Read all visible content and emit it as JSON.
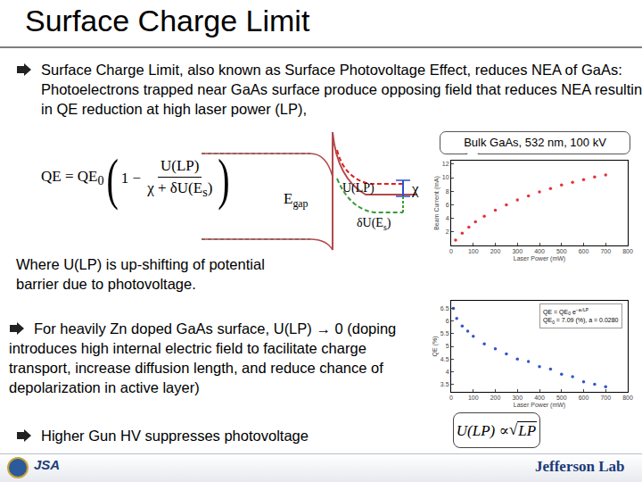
{
  "header": {
    "title": "Surface Charge Limit"
  },
  "bullets": [
    "Surface Charge Limit, also known as Surface Photovoltage Effect, reduces NEA of GaAs: Photoelectrons trapped near GaAs surface produce opposing field that reduces NEA resulting in QE reduction at high laser power (LP),",
    "For heavily Zn doped GaAs surface, U(LP) → 0 (doping introduces high internal electric field to facilitate charge transport, increase diffusion length, and reduce chance of depolarization in active layer)",
    "Higher Gun HV suppresses photovoltage"
  ],
  "note": "Where U(LP) is up-shifting of potential barrier due to photovoltage.",
  "formula": {
    "lhs": "QE = QE",
    "lhs_sub": "0",
    "open": "(",
    "one_minus": "1 −",
    "numerator": "U(LP)",
    "denominator": "χ + δU(E",
    "denominator_sub": "s",
    "denominator_end": ")",
    "close": ")"
  },
  "diagram": {
    "egap": {
      "text": "E",
      "sub": "gap"
    },
    "u_lp": "U(LP)",
    "chi": "χ",
    "delta_u": {
      "text": "δU(E",
      "sub": "s",
      "end": ")"
    }
  },
  "callout": "Bulk GaAs, 532 nm, 100 kV",
  "proportional": {
    "lhs": "U(LP) ∝ ",
    "radical": "√",
    "radicand": "LP"
  },
  "chart_data": [
    {
      "type": "scatter",
      "x_label": "Laser Power (mW)",
      "y_label": "Beam Current (mA)",
      "x": [
        20,
        50,
        80,
        110,
        150,
        200,
        250,
        300,
        350,
        400,
        450,
        500,
        550,
        600,
        650,
        700
      ],
      "series": [
        {
          "color": "#e8303a",
          "marker": "circle",
          "values": [
            0.8,
            1.8,
            2.7,
            3.5,
            4.3,
            5.2,
            6.0,
            6.7,
            7.3,
            7.9,
            8.4,
            8.9,
            9.3,
            9.7,
            10.1,
            10.4
          ]
        }
      ],
      "xlim": [
        0,
        800
      ],
      "xticks": [
        0,
        100,
        200,
        300,
        400,
        500,
        600,
        700,
        800
      ],
      "ylim": [
        0,
        12.5
      ],
      "yticks": [
        2,
        4,
        6,
        8,
        10,
        12
      ],
      "grid": false
    },
    {
      "type": "scatter",
      "x_label": "Laser Power (mW)",
      "y_label": "QE (%)",
      "x": [
        10,
        25,
        50,
        75,
        100,
        150,
        200,
        250,
        300,
        350,
        400,
        450,
        500,
        550,
        600,
        650,
        700
      ],
      "series": [
        {
          "color": "#2f55c8",
          "marker": "circle",
          "values": [
            6.5,
            6.1,
            5.8,
            5.6,
            5.4,
            5.1,
            4.9,
            4.7,
            4.5,
            4.4,
            4.2,
            4.1,
            3.9,
            3.8,
            3.6,
            3.5,
            3.4
          ]
        }
      ],
      "xlim": [
        0,
        800
      ],
      "xticks": [
        0,
        100,
        200,
        300,
        400,
        500,
        600,
        700,
        800
      ],
      "ylim": [
        3.2,
        6.8
      ],
      "yticks": [
        3.5,
        4,
        4.5,
        5,
        5.5,
        6,
        6.5
      ],
      "grid": false,
      "annotations": [
        {
          "text": "QE = QE",
          "sub": "0",
          "tail": " e",
          "sup": "−a√LP"
        },
        {
          "text": "QE",
          "sub": "0",
          "tail": " = 7.09 (%), a = 0.0280"
        }
      ]
    }
  ],
  "footer": {
    "logo": "JSA",
    "brand": "Jefferson Lab"
  }
}
